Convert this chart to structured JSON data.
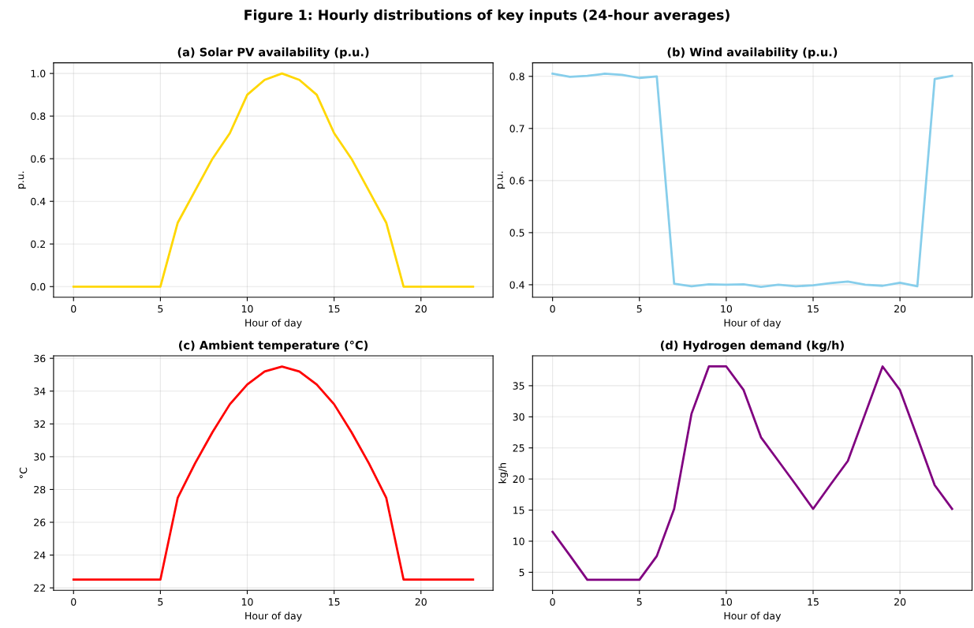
{
  "chart_data": [
    {
      "type": "line",
      "annotations": [
        "Figure 1: Hourly distributions of key inputs (24-hour averages)"
      ],
      "title": "(a) Solar PV availability (p.u.)",
      "xlabel": "Hour of day",
      "ylabel": "p.u.",
      "x": [
        0,
        1,
        2,
        3,
        4,
        5,
        6,
        7,
        8,
        9,
        10,
        11,
        12,
        13,
        14,
        15,
        16,
        17,
        18,
        19,
        20,
        21,
        22,
        23
      ],
      "series": [
        {
          "color": "#ffd700",
          "values": [
            0,
            0,
            0,
            0,
            0,
            0,
            0.3,
            0.45,
            0.6,
            0.72,
            0.9,
            0.97,
            1.0,
            0.97,
            0.9,
            0.72,
            0.6,
            0.45,
            0.3,
            0,
            0,
            0,
            0,
            0
          ]
        }
      ],
      "xlim": [
        -1.15,
        24.15
      ],
      "xticks": [
        0,
        5,
        10,
        15,
        20
      ],
      "ylim": [
        -0.05,
        1.05
      ],
      "yticks": [
        {
          "value": 0,
          "label": "0.0"
        },
        0.2,
        0.4,
        0.6,
        0.8,
        {
          "value": 1,
          "label": "1.0"
        }
      ],
      "grid": true
    },
    {
      "type": "line",
      "title": "(b) Wind availability (p.u.)",
      "xlabel": "Hour of day",
      "ylabel": "p.u.",
      "x": [
        0,
        1,
        2,
        3,
        4,
        5,
        6,
        7,
        8,
        9,
        10,
        11,
        12,
        13,
        14,
        15,
        16,
        17,
        18,
        19,
        20,
        21,
        22,
        23
      ],
      "series": [
        {
          "color": "#87ceeb",
          "values": [
            0.805,
            0.799,
            0.801,
            0.805,
            0.803,
            0.797,
            0.8,
            0.402,
            0.397,
            0.401,
            0.4,
            0.401,
            0.396,
            0.4,
            0.397,
            0.399,
            0.403,
            0.406,
            0.4,
            0.398,
            0.404,
            0.397,
            0.795,
            0.801
          ]
        }
      ],
      "xlim": [
        -1.15,
        24.15
      ],
      "xticks": [
        0,
        5,
        10,
        15,
        20
      ],
      "ylim": [
        0.376,
        0.826
      ],
      "yticks": [
        0.4,
        0.5,
        0.6,
        0.7,
        0.8
      ],
      "grid": true
    },
    {
      "type": "line",
      "title": "(c) Ambient temperature (°C)",
      "xlabel": "Hour of day",
      "ylabel": "°C",
      "x": [
        0,
        1,
        2,
        3,
        4,
        5,
        6,
        7,
        8,
        9,
        10,
        11,
        12,
        13,
        14,
        15,
        16,
        17,
        18,
        19,
        20,
        21,
        22,
        23
      ],
      "series": [
        {
          "color": "#ff0000",
          "values": [
            22.5,
            22.5,
            22.5,
            22.5,
            22.5,
            22.5,
            27.5,
            29.6,
            31.5,
            33.2,
            34.4,
            35.2,
            35.5,
            35.2,
            34.4,
            33.2,
            31.5,
            29.6,
            27.5,
            22.5,
            22.5,
            22.5,
            22.5,
            22.5
          ]
        }
      ],
      "xlim": [
        -1.15,
        24.15
      ],
      "xticks": [
        0,
        5,
        10,
        15,
        20
      ],
      "ylim": [
        21.85,
        36.15
      ],
      "yticks": [
        22,
        24,
        26,
        28,
        30,
        32,
        34,
        36
      ],
      "grid": true
    },
    {
      "type": "line",
      "title": "(d) Hydrogen demand (kg/h)",
      "xlabel": "Hour of day",
      "ylabel": "kg/h",
      "x": [
        0,
        1,
        2,
        3,
        4,
        5,
        6,
        7,
        8,
        9,
        10,
        11,
        12,
        13,
        14,
        15,
        16,
        17,
        18,
        19,
        20,
        21,
        22,
        23
      ],
      "series": [
        {
          "color": "#800080",
          "values": [
            11.5,
            7.7,
            3.8,
            3.8,
            3.8,
            3.8,
            7.6,
            15.2,
            30.5,
            38.1,
            38.1,
            34.3,
            26.7,
            22.9,
            19.1,
            15.2,
            19.1,
            22.9,
            30.5,
            38.1,
            34.3,
            26.7,
            19.0,
            15.2
          ]
        }
      ],
      "xlim": [
        -1.15,
        24.15
      ],
      "xticks": [
        0,
        5,
        10,
        15,
        20
      ],
      "ylim": [
        2.1,
        39.8
      ],
      "yticks": [
        5,
        10,
        15,
        20,
        25,
        30,
        35
      ],
      "grid": true
    }
  ]
}
